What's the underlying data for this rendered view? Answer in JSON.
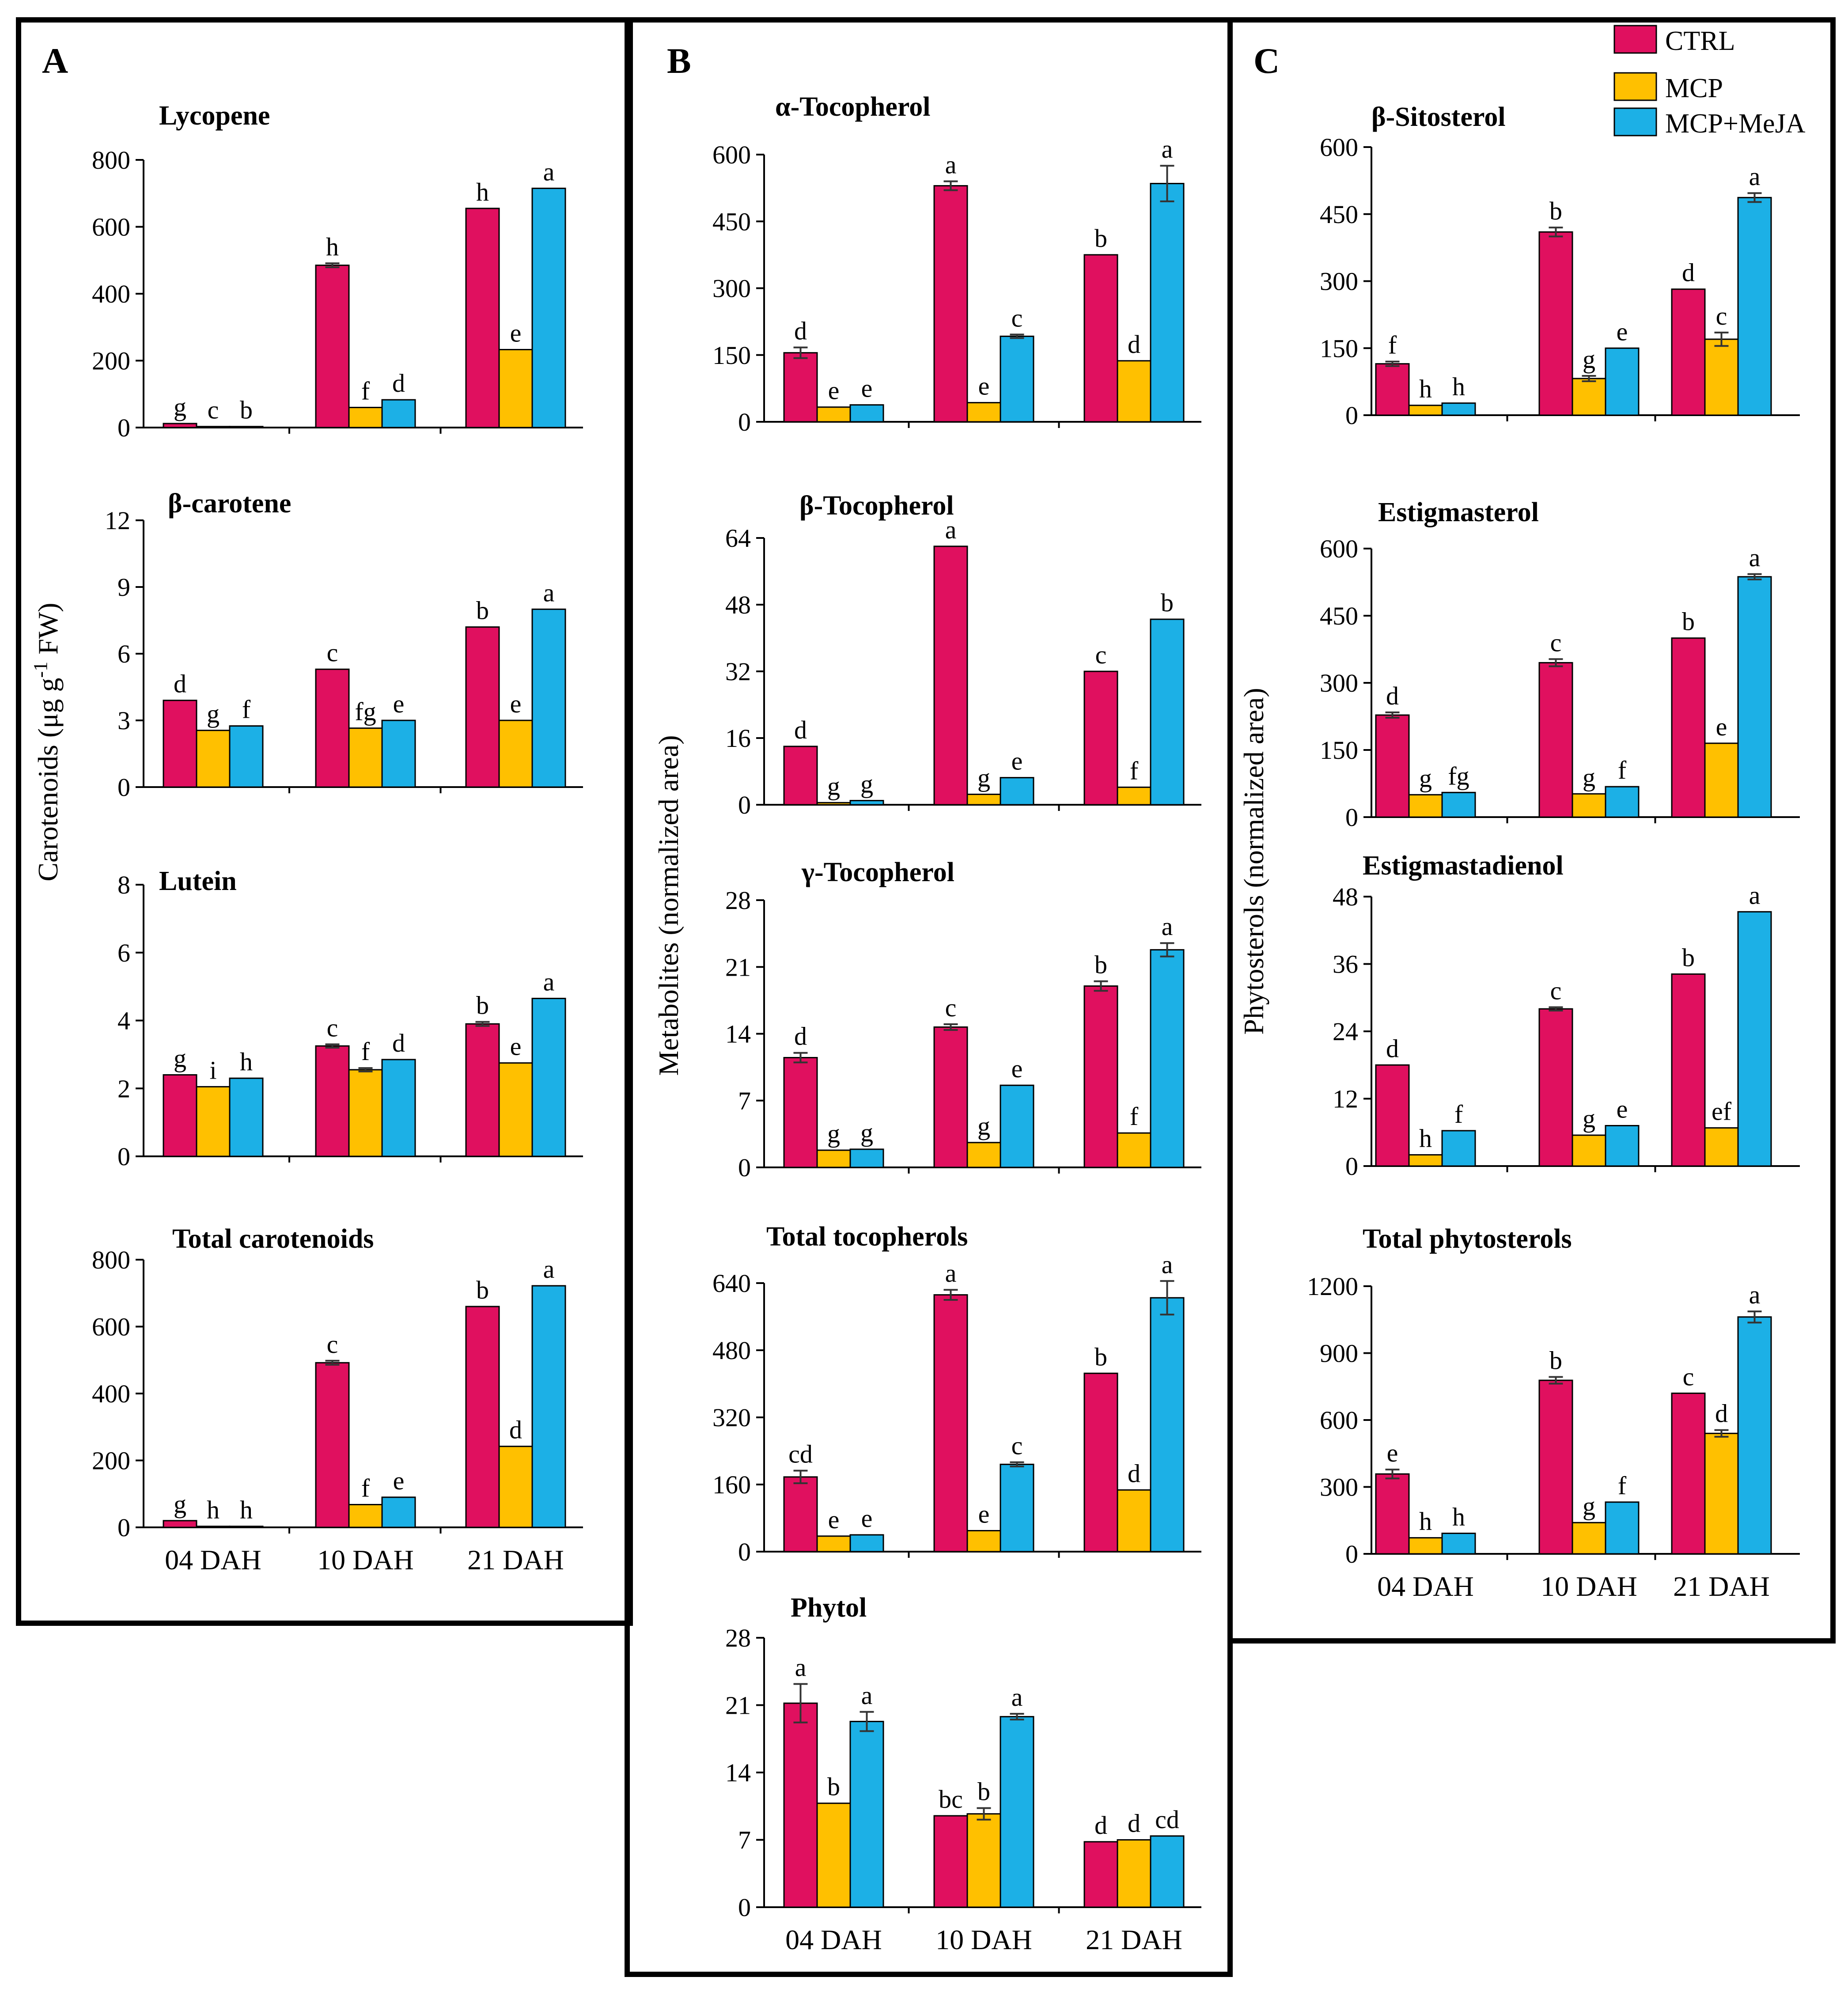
{
  "legend": {
    "entries": [
      {
        "name": "CTRL",
        "color": "#E0105F"
      },
      {
        "name": "MCP",
        "color": "#FFC000"
      },
      {
        "name": "MCP+MeJA",
        "color": "#1CB0E6"
      }
    ]
  },
  "panels": [
    {
      "letter": "A",
      "ylabel_main": "Carotenoids (μg g",
      "ylabel_sup": "-1",
      "ylabel_tail": " FW)"
    },
    {
      "letter": "B",
      "ylabel_main": "Metabolites (normalized  area)"
    },
    {
      "letter": "C",
      "ylabel_main": "Phytosterols (normalized  area)"
    }
  ],
  "chart_data": [
    {
      "type": "bar",
      "panel": 0,
      "title": "Lycopene",
      "categories": [
        "04 DAH",
        "10 DAH",
        "21 DAH"
      ],
      "ylim": [
        0,
        800
      ],
      "yticks": [
        0,
        200,
        400,
        600,
        800
      ],
      "series": [
        {
          "name": "CTRL",
          "values": [
            12,
            485,
            655
          ],
          "err": [
            0,
            6,
            0
          ]
        },
        {
          "name": "MCP",
          "values": [
            3,
            60,
            233
          ],
          "err": [
            0,
            0,
            0
          ]
        },
        {
          "name": "MCP+MeJA",
          "values": [
            3,
            83,
            715
          ],
          "err": [
            0,
            0,
            0
          ]
        }
      ],
      "labels": [
        [
          "g",
          "h",
          "h"
        ],
        [
          "c",
          "f",
          "e"
        ],
        [
          "b",
          "d",
          "a"
        ]
      ]
    },
    {
      "type": "bar",
      "panel": 0,
      "title": "β-carotene",
      "categories": [
        "04 DAH",
        "10 DAH",
        "21 DAH"
      ],
      "ylim": [
        0,
        12
      ],
      "yticks": [
        0,
        3,
        6,
        9,
        12
      ],
      "series": [
        {
          "name": "CTRL",
          "values": [
            3.9,
            5.3,
            7.2
          ],
          "err": [
            0,
            0,
            0
          ]
        },
        {
          "name": "MCP",
          "values": [
            2.55,
            2.65,
            3.0
          ],
          "err": [
            0,
            0,
            0
          ]
        },
        {
          "name": "MCP+MeJA",
          "values": [
            2.75,
            3.0,
            8.0
          ],
          "err": [
            0,
            0,
            0
          ]
        }
      ],
      "labels": [
        [
          "d",
          "c",
          "b"
        ],
        [
          "g",
          "fg",
          "e"
        ],
        [
          "f",
          "e",
          "a"
        ]
      ]
    },
    {
      "type": "bar",
      "panel": 0,
      "title": "Lutein",
      "categories": [
        "04 DAH",
        "10 DAH",
        "21 DAH"
      ],
      "ylim": [
        0,
        8
      ],
      "yticks": [
        0,
        2,
        4,
        6,
        8
      ],
      "series": [
        {
          "name": "CTRL",
          "values": [
            2.4,
            3.25,
            3.9
          ],
          "err": [
            0,
            0.05,
            0.06
          ]
        },
        {
          "name": "MCP",
          "values": [
            2.05,
            2.55,
            2.75
          ],
          "err": [
            0,
            0.05,
            0
          ]
        },
        {
          "name": "MCP+MeJA",
          "values": [
            2.3,
            2.85,
            4.65
          ],
          "err": [
            0,
            0,
            0
          ]
        }
      ],
      "labels": [
        [
          "g",
          "c",
          "b"
        ],
        [
          "i",
          "f",
          "e"
        ],
        [
          "h",
          "d",
          "a"
        ]
      ]
    },
    {
      "type": "bar",
      "panel": 0,
      "title": "Total  carotenoids",
      "categories": [
        "04 DAH",
        "10 DAH",
        "21 DAH"
      ],
      "ylim": [
        0,
        800
      ],
      "yticks": [
        0,
        200,
        400,
        600,
        800
      ],
      "series": [
        {
          "name": "CTRL",
          "values": [
            20,
            492,
            660
          ],
          "err": [
            0,
            6,
            0
          ]
        },
        {
          "name": "MCP",
          "values": [
            3,
            68,
            242
          ],
          "err": [
            0,
            0,
            0
          ]
        },
        {
          "name": "MCP+MeJA",
          "values": [
            3,
            90,
            722
          ],
          "err": [
            0,
            0,
            0
          ]
        }
      ],
      "labels": [
        [
          "g",
          "c",
          "b"
        ],
        [
          "h",
          "f",
          "d"
        ],
        [
          "h",
          "e",
          "a"
        ]
      ]
    },
    {
      "type": "bar",
      "panel": 1,
      "title": "α-Tocopherol",
      "categories": [
        "04 DAH",
        "10 DAH",
        "21 DAH"
      ],
      "ylim": [
        0,
        600
      ],
      "yticks": [
        0,
        150,
        300,
        450,
        600
      ],
      "series": [
        {
          "name": "CTRL",
          "values": [
            155,
            530,
            375
          ],
          "err": [
            12,
            10,
            0
          ]
        },
        {
          "name": "MCP",
          "values": [
            33,
            43,
            137
          ],
          "err": [
            0,
            0,
            0
          ]
        },
        {
          "name": "MCP+MeJA",
          "values": [
            38,
            192,
            535
          ],
          "err": [
            0,
            4,
            40
          ]
        }
      ],
      "labels": [
        [
          "d",
          "a",
          "b"
        ],
        [
          "e",
          "e",
          "d"
        ],
        [
          "e",
          "c",
          "a"
        ]
      ]
    },
    {
      "type": "bar",
      "panel": 1,
      "title": "β-Tocopherol",
      "categories": [
        "04 DAH",
        "10 DAH",
        "21 DAH"
      ],
      "ylim": [
        0,
        64
      ],
      "yticks": [
        0,
        16,
        32,
        48,
        64
      ],
      "series": [
        {
          "name": "CTRL",
          "values": [
            14,
            62,
            32
          ],
          "err": [
            0,
            0,
            0
          ]
        },
        {
          "name": "MCP",
          "values": [
            0.5,
            2.5,
            4.2
          ],
          "err": [
            0,
            0,
            0
          ]
        },
        {
          "name": "MCP+MeJA",
          "values": [
            1,
            6.5,
            44.5
          ],
          "err": [
            0,
            0,
            0
          ]
        }
      ],
      "labels": [
        [
          "d",
          "a",
          "c"
        ],
        [
          "g",
          "g",
          "f"
        ],
        [
          "g",
          "e",
          "b"
        ]
      ]
    },
    {
      "type": "bar",
      "panel": 1,
      "title": "γ-Tocopherol",
      "categories": [
        "04 DAH",
        "10 DAH",
        "21 DAH"
      ],
      "ylim": [
        0,
        28
      ],
      "yticks": [
        0,
        7,
        14,
        21,
        28
      ],
      "series": [
        {
          "name": "CTRL",
          "values": [
            11.5,
            14.7,
            19
          ],
          "err": [
            0.5,
            0.3,
            0.5
          ]
        },
        {
          "name": "MCP",
          "values": [
            1.8,
            2.6,
            3.6
          ],
          "err": [
            0,
            0,
            0
          ]
        },
        {
          "name": "MCP+MeJA",
          "values": [
            1.9,
            8.6,
            22.8
          ],
          "err": [
            0,
            0,
            0.7
          ]
        }
      ],
      "labels": [
        [
          "d",
          "c",
          "b"
        ],
        [
          "g",
          "g",
          "f"
        ],
        [
          "g",
          "e",
          "a"
        ]
      ]
    },
    {
      "type": "bar",
      "panel": 1,
      "title": "Total  tocopherols",
      "categories": [
        "04 DAH",
        "10 DAH",
        "21 DAH"
      ],
      "ylim": [
        0,
        640
      ],
      "yticks": [
        0,
        160,
        320,
        480,
        640
      ],
      "series": [
        {
          "name": "CTRL",
          "values": [
            178,
            612,
            425
          ],
          "err": [
            15,
            12,
            0
          ]
        },
        {
          "name": "MCP",
          "values": [
            37,
            50,
            147
          ],
          "err": [
            0,
            0,
            0
          ]
        },
        {
          "name": "MCP+MeJA",
          "values": [
            40,
            208,
            605
          ],
          "err": [
            0,
            5,
            40
          ]
        }
      ],
      "labels": [
        [
          "cd",
          "a",
          "b"
        ],
        [
          "e",
          "e",
          "d"
        ],
        [
          "e",
          "c",
          "a"
        ]
      ]
    },
    {
      "type": "bar",
      "panel": 1,
      "title": "Phytol",
      "categories": [
        "04 DAH",
        "10 DAH",
        "21 DAH"
      ],
      "ylim": [
        0,
        28
      ],
      "yticks": [
        0,
        7,
        14,
        21,
        28
      ],
      "series": [
        {
          "name": "CTRL",
          "values": [
            21.2,
            9.5,
            6.8
          ],
          "err": [
            2,
            0,
            0
          ]
        },
        {
          "name": "MCP",
          "values": [
            10.8,
            9.7,
            7
          ],
          "err": [
            0,
            0.6,
            0
          ]
        },
        {
          "name": "MCP+MeJA",
          "values": [
            19.3,
            19.8,
            7.4
          ],
          "err": [
            1,
            0.3,
            0
          ]
        }
      ],
      "labels": [
        [
          "a",
          "bc",
          "d"
        ],
        [
          "b",
          "b",
          "d"
        ],
        [
          "a",
          "a",
          "cd"
        ]
      ]
    },
    {
      "type": "bar",
      "panel": 2,
      "title": "β-Sitosterol",
      "categories": [
        "04 DAH",
        "10 DAH",
        "21 DAH"
      ],
      "ylim": [
        0,
        600
      ],
      "yticks": [
        0,
        150,
        300,
        450,
        600
      ],
      "series": [
        {
          "name": "CTRL",
          "values": [
            115,
            410,
            282
          ],
          "err": [
            5,
            10,
            0
          ]
        },
        {
          "name": "MCP",
          "values": [
            22,
            82,
            170
          ],
          "err": [
            0,
            6,
            15
          ]
        },
        {
          "name": "MCP+MeJA",
          "values": [
            27,
            150,
            487
          ],
          "err": [
            0,
            0,
            10
          ]
        }
      ],
      "labels": [
        [
          "f",
          "b",
          "d"
        ],
        [
          "h",
          "g",
          "c"
        ],
        [
          "h",
          "e",
          "a"
        ]
      ]
    },
    {
      "type": "bar",
      "panel": 2,
      "title": "Estigmasterol",
      "categories": [
        "04 DAH",
        "10 DAH",
        "21 DAH"
      ],
      "ylim": [
        0,
        600
      ],
      "yticks": [
        0,
        150,
        300,
        450,
        600
      ],
      "series": [
        {
          "name": "CTRL",
          "values": [
            228,
            345,
            400
          ],
          "err": [
            6,
            8,
            0
          ]
        },
        {
          "name": "MCP",
          "values": [
            50,
            52,
            165
          ],
          "err": [
            0,
            0,
            0
          ]
        },
        {
          "name": "MCP+MeJA",
          "values": [
            55,
            68,
            537
          ],
          "err": [
            0,
            0,
            6
          ]
        }
      ],
      "labels": [
        [
          "d",
          "c",
          "b"
        ],
        [
          "g",
          "g",
          "e"
        ],
        [
          "fg",
          "f",
          "a"
        ]
      ]
    },
    {
      "type": "bar",
      "panel": 2,
      "title": "Estigmastadienol",
      "categories": [
        "04 DAH",
        "10 DAH",
        "21 DAH"
      ],
      "ylim": [
        0,
        48
      ],
      "yticks": [
        0,
        12,
        24,
        36,
        48
      ],
      "series": [
        {
          "name": "CTRL",
          "values": [
            18,
            28,
            34.2
          ],
          "err": [
            0,
            0.3,
            0
          ]
        },
        {
          "name": "MCP",
          "values": [
            2,
            5.5,
            6.8
          ],
          "err": [
            0,
            0,
            0
          ]
        },
        {
          "name": "MCP+MeJA",
          "values": [
            6.3,
            7.2,
            45.3
          ],
          "err": [
            0,
            0,
            0
          ]
        }
      ],
      "labels": [
        [
          "d",
          "c",
          "b"
        ],
        [
          "h",
          "g",
          "ef"
        ],
        [
          "f",
          "e",
          "a"
        ]
      ]
    },
    {
      "type": "bar",
      "panel": 2,
      "title": "Total  phytosterols",
      "categories": [
        "04 DAH",
        "10 DAH",
        "21 DAH"
      ],
      "ylim": [
        0,
        1200
      ],
      "yticks": [
        0,
        300,
        600,
        900,
        1200
      ],
      "series": [
        {
          "name": "CTRL",
          "values": [
            358,
            778,
            720
          ],
          "err": [
            20,
            15,
            0
          ]
        },
        {
          "name": "MCP",
          "values": [
            72,
            140,
            540
          ],
          "err": [
            0,
            0,
            15
          ]
        },
        {
          "name": "MCP+MeJA",
          "values": [
            92,
            232,
            1062
          ],
          "err": [
            0,
            0,
            25
          ]
        }
      ],
      "labels": [
        [
          "e",
          "b",
          "c"
        ],
        [
          "h",
          "g",
          "d"
        ],
        [
          "h",
          "f",
          "a"
        ]
      ]
    }
  ]
}
